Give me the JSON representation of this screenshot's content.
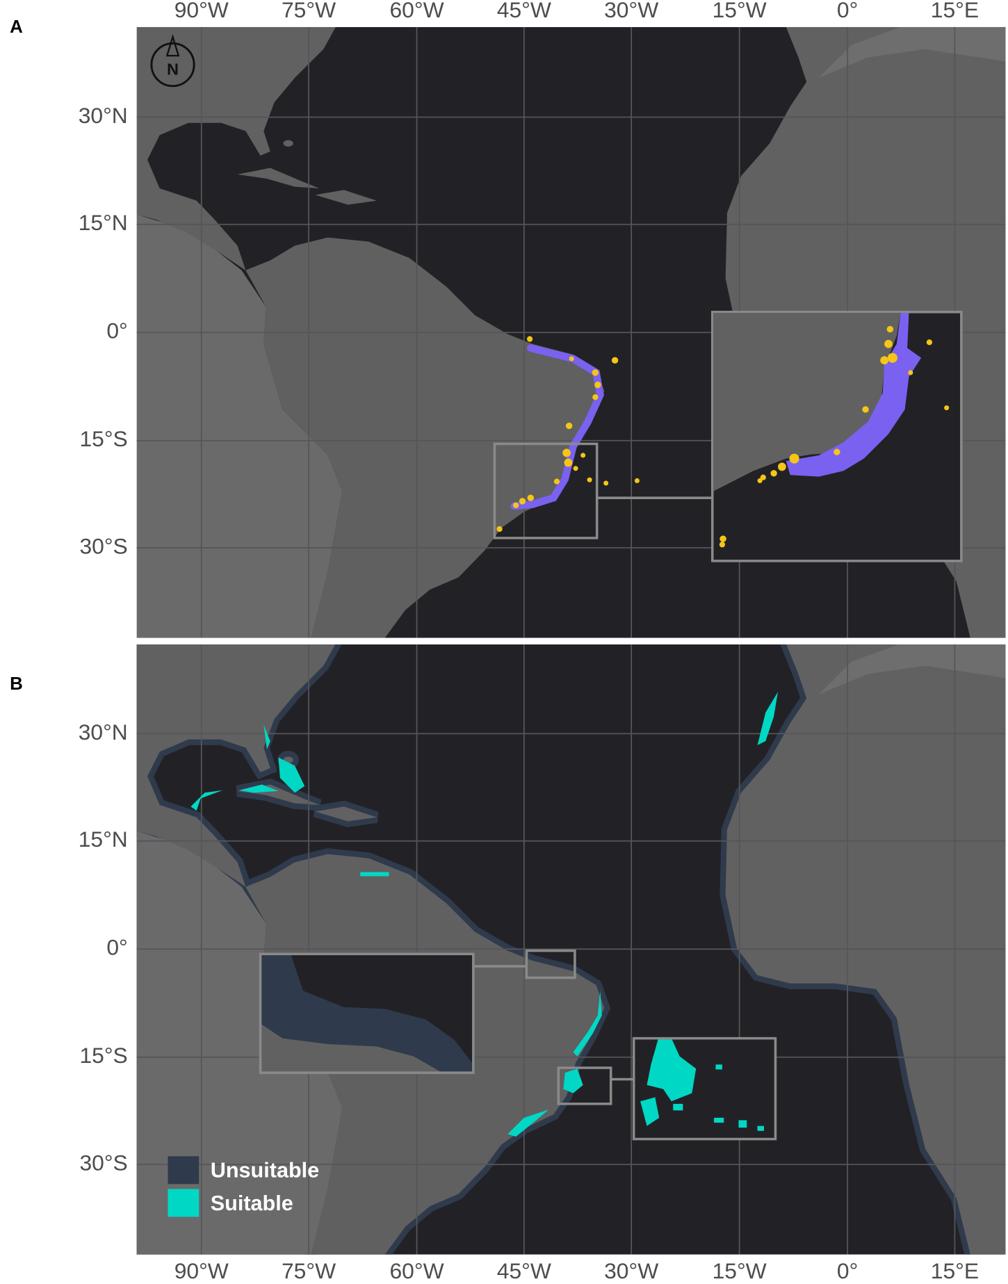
{
  "panels": [
    {
      "label": "A"
    },
    {
      "label": "B"
    }
  ],
  "longitude_labels": [
    "90°W",
    "75°W",
    "60°W",
    "45°W",
    "30°W",
    "15°W",
    "0°",
    "15°E"
  ],
  "latitude_labels": [
    "30°N",
    "15°N",
    "0°",
    "15°S",
    "30°S"
  ],
  "north_arrow": "N",
  "legend": [
    {
      "label": "Unsuitable",
      "color": "#2f3b4c"
    },
    {
      "label": "Suitable",
      "color": "#00d8c5"
    }
  ]
}
